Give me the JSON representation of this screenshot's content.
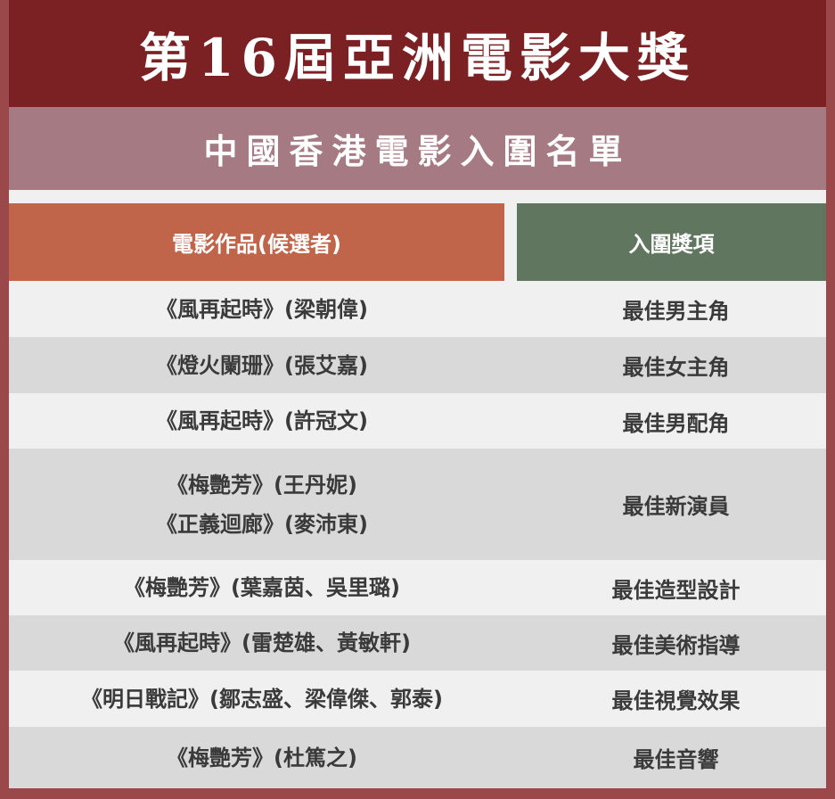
{
  "title": "第16屆亞洲電影大獎",
  "subtitle": "中國香港電影入圍名單",
  "headers": {
    "work": "電影作品(候選者)",
    "award": "入圍獎項"
  },
  "rows": [
    {
      "works": [
        "《風再起時》(梁朝偉)"
      ],
      "award": "最佳男主角"
    },
    {
      "works": [
        "《燈火闌珊》(張艾嘉)"
      ],
      "award": "最佳女主角"
    },
    {
      "works": [
        "《風再起時》(許冠文)"
      ],
      "award": "最佳男配角"
    },
    {
      "works": [
        "《梅艷芳》(王丹妮)",
        "《正義迴廊》(麥沛東)"
      ],
      "award": "最佳新演員"
    },
    {
      "works": [
        "《梅艷芳》(葉嘉茵、吳里璐)"
      ],
      "award": "最佳造型設計"
    },
    {
      "works": [
        "《風再起時》(雷楚雄、黃敏軒)"
      ],
      "award": "最佳美術指導"
    },
    {
      "works": [
        "《明日戰記》(鄒志盛、梁偉傑、郭泰)"
      ],
      "award": "最佳視覺效果"
    },
    {
      "works": [
        "《梅艷芳》(杜篤之)"
      ],
      "award": "最佳音響"
    }
  ],
  "colors": {
    "border": "#9a4849",
    "title_bg": "#7b2123",
    "subtitle_bg": "#a57a82",
    "work_header": "#c0644a",
    "award_header": "#60765f"
  }
}
